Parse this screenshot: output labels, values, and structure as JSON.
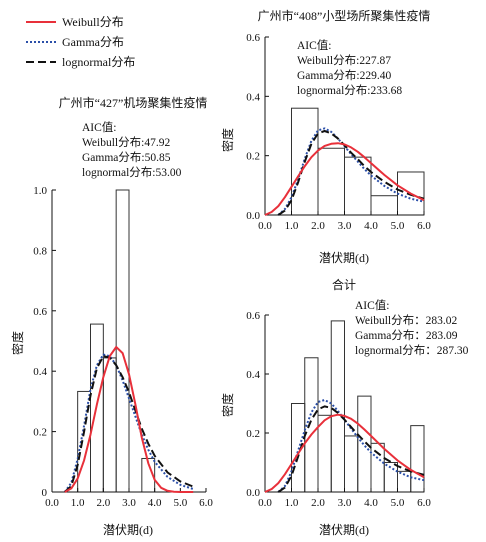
{
  "legend": [
    {
      "label": "Weibull分布",
      "color": "#e8303a",
      "dash": ""
    },
    {
      "label": "Gamma分布",
      "color": "#2b4fa8",
      "dash": "2,2"
    },
    {
      "label": "lognormal分布",
      "color": "#111111",
      "dash": "8,4"
    }
  ],
  "chart_data": [
    {
      "id": "p427",
      "type": "bar+line",
      "title": "广州市“427”机场聚集性疫情",
      "xlabel": "潜伏期(d)",
      "ylabel": "密度",
      "xlim": [
        0,
        6.0
      ],
      "ylim": [
        0,
        1.0
      ],
      "xticks": [
        "0.0",
        "1.0",
        "2.0",
        "3.0",
        "4.0",
        "5.0",
        "6.0"
      ],
      "yticks": [
        "0",
        "0.2",
        "0.4",
        "0.6",
        "0.8",
        "1.0"
      ],
      "bins": [
        {
          "x0": 1.0,
          "x1": 1.5,
          "density": 0.333
        },
        {
          "x0": 1.5,
          "x1": 2.0,
          "density": 0.556
        },
        {
          "x0": 2.0,
          "x1": 2.5,
          "density": 0.444
        },
        {
          "x0": 2.5,
          "x1": 3.0,
          "density": 1.0
        },
        {
          "x0": 3.0,
          "x1": 3.5,
          "density": 0.0
        },
        {
          "x0": 3.5,
          "x1": 4.0,
          "density": 0.111
        }
      ],
      "aic_title": "AIC值:",
      "aic": [
        "Weibull分布:47.92",
        "Gamma分布:50.85",
        "lognormal分布:53.00"
      ],
      "series": [
        {
          "name": "Weibull分布",
          "x": [
            0.5,
            0.75,
            1.0,
            1.25,
            1.5,
            1.75,
            2.0,
            2.25,
            2.5,
            2.75,
            3.0,
            3.25,
            3.5,
            3.75,
            4.0,
            4.25,
            4.5,
            4.75,
            5.0,
            5.5
          ],
          "y": [
            0.0,
            0.012,
            0.045,
            0.105,
            0.19,
            0.29,
            0.38,
            0.45,
            0.48,
            0.46,
            0.39,
            0.29,
            0.18,
            0.095,
            0.04,
            0.014,
            0.004,
            0.001,
            0.0,
            0.0
          ]
        },
        {
          "name": "Gamma分布",
          "x": [
            0.5,
            0.75,
            1.0,
            1.25,
            1.5,
            1.75,
            2.0,
            2.25,
            2.5,
            2.75,
            3.0,
            3.25,
            3.5,
            3.75,
            4.0,
            4.5,
            5.0,
            5.5
          ],
          "y": [
            0.0,
            0.03,
            0.11,
            0.22,
            0.34,
            0.42,
            0.455,
            0.45,
            0.42,
            0.37,
            0.31,
            0.25,
            0.19,
            0.14,
            0.1,
            0.05,
            0.024,
            0.01
          ]
        },
        {
          "name": "lognormal分布",
          "x": [
            0.5,
            0.75,
            1.0,
            1.25,
            1.5,
            1.75,
            2.0,
            2.25,
            2.5,
            2.75,
            3.0,
            3.25,
            3.5,
            3.75,
            4.0,
            4.5,
            5.0,
            5.5
          ],
          "y": [
            0.0,
            0.02,
            0.09,
            0.2,
            0.32,
            0.41,
            0.45,
            0.445,
            0.42,
            0.38,
            0.33,
            0.27,
            0.21,
            0.16,
            0.12,
            0.065,
            0.035,
            0.018
          ]
        }
      ]
    },
    {
      "id": "p408",
      "type": "bar+line",
      "title": "广州市“408”小型场所聚集性疫情",
      "xlabel": "潜伏期(d)",
      "ylabel": "密度",
      "xlim": [
        0,
        6.0
      ],
      "ylim": [
        0,
        0.6
      ],
      "xticks": [
        "0.0",
        "1.0",
        "2.0",
        "3.0",
        "4.0",
        "5.0",
        "6.0"
      ],
      "yticks": [
        "0.0",
        "0.2",
        "0.4",
        "0.6"
      ],
      "bins": [
        {
          "x0": 1.0,
          "x1": 2.0,
          "density": 0.36
        },
        {
          "x0": 2.0,
          "x1": 3.0,
          "density": 0.225
        },
        {
          "x0": 3.0,
          "x1": 4.0,
          "density": 0.195
        },
        {
          "x0": 4.0,
          "x1": 5.0,
          "density": 0.065
        },
        {
          "x0": 5.0,
          "x1": 6.0,
          "density": 0.145
        }
      ],
      "aic_title": "AIC值:",
      "aic": [
        "Weibull分布:227.87",
        "Gamma分布:229.40",
        "lognormal分布:233.68"
      ],
      "series": [
        {
          "name": "Weibull分布",
          "x": [
            0.0,
            0.25,
            0.5,
            0.75,
            1.0,
            1.25,
            1.5,
            1.75,
            2.0,
            2.25,
            2.5,
            2.75,
            3.0,
            3.25,
            3.5,
            3.75,
            4.0,
            4.5,
            5.0,
            5.5,
            6.0
          ],
          "y": [
            0.0,
            0.01,
            0.03,
            0.06,
            0.095,
            0.13,
            0.165,
            0.195,
            0.217,
            0.233,
            0.24,
            0.242,
            0.238,
            0.228,
            0.213,
            0.195,
            0.175,
            0.135,
            0.1,
            0.072,
            0.05
          ]
        },
        {
          "name": "Gamma分布",
          "x": [
            0.5,
            0.75,
            1.0,
            1.25,
            1.5,
            1.75,
            2.0,
            2.25,
            2.5,
            2.75,
            3.0,
            3.25,
            3.5,
            3.75,
            4.0,
            4.5,
            5.0,
            5.5,
            6.0
          ],
          "y": [
            0.0,
            0.02,
            0.06,
            0.12,
            0.19,
            0.25,
            0.285,
            0.292,
            0.28,
            0.258,
            0.232,
            0.205,
            0.18,
            0.155,
            0.133,
            0.098,
            0.072,
            0.055,
            0.045
          ]
        },
        {
          "name": "lognormal分布",
          "x": [
            0.5,
            0.75,
            1.0,
            1.25,
            1.5,
            1.75,
            2.0,
            2.25,
            2.5,
            2.75,
            3.0,
            3.25,
            3.5,
            3.75,
            4.0,
            4.5,
            5.0,
            5.5,
            6.0
          ],
          "y": [
            0.0,
            0.015,
            0.05,
            0.11,
            0.18,
            0.24,
            0.275,
            0.283,
            0.275,
            0.258,
            0.235,
            0.21,
            0.188,
            0.165,
            0.145,
            0.112,
            0.086,
            0.068,
            0.055
          ]
        }
      ]
    },
    {
      "id": "total",
      "type": "bar+line",
      "title": "合计",
      "xlabel": "潜伏期(d)",
      "ylabel": "密度",
      "xlim": [
        0,
        6.0
      ],
      "ylim": [
        0,
        0.6
      ],
      "xticks": [
        "0.0",
        "1.0",
        "2.0",
        "3.0",
        "4.0",
        "5.0",
        "6.0"
      ],
      "yticks": [
        "0.0",
        "0.2",
        "0.4",
        "0.6"
      ],
      "bins": [
        {
          "x0": 1.0,
          "x1": 1.5,
          "density": 0.3
        },
        {
          "x0": 1.5,
          "x1": 2.0,
          "density": 0.455
        },
        {
          "x0": 2.0,
          "x1": 2.5,
          "density": 0.26
        },
        {
          "x0": 2.5,
          "x1": 3.0,
          "density": 0.58
        },
        {
          "x0": 3.0,
          "x1": 3.5,
          "density": 0.19
        },
        {
          "x0": 3.5,
          "x1": 4.0,
          "density": 0.325
        },
        {
          "x0": 4.0,
          "x1": 4.5,
          "density": 0.165
        },
        {
          "x0": 4.5,
          "x1": 5.0,
          "density": 0.1
        },
        {
          "x0": 5.0,
          "x1": 5.5,
          "density": 0.07
        },
        {
          "x0": 5.5,
          "x1": 6.0,
          "density": 0.225
        }
      ],
      "aic_title": "AIC值:",
      "aic": [
        "Weibull分布：283.02",
        "Gamma分布：283.09",
        "lognormal分布：287.30"
      ],
      "series": [
        {
          "name": "Weibull分布",
          "x": [
            0.0,
            0.25,
            0.5,
            0.75,
            1.0,
            1.25,
            1.5,
            1.75,
            2.0,
            2.25,
            2.5,
            2.75,
            3.0,
            3.25,
            3.5,
            3.75,
            4.0,
            4.5,
            5.0,
            5.5,
            6.0
          ],
          "y": [
            0.0,
            0.01,
            0.03,
            0.06,
            0.095,
            0.13,
            0.165,
            0.195,
            0.22,
            0.243,
            0.257,
            0.262,
            0.258,
            0.248,
            0.232,
            0.212,
            0.19,
            0.146,
            0.107,
            0.075,
            0.05
          ]
        },
        {
          "name": "Gamma分布",
          "x": [
            0.5,
            0.75,
            1.0,
            1.25,
            1.5,
            1.75,
            2.0,
            2.25,
            2.5,
            2.75,
            3.0,
            3.25,
            3.5,
            3.75,
            4.0,
            4.5,
            5.0,
            5.5,
            6.0
          ],
          "y": [
            0.0,
            0.02,
            0.07,
            0.14,
            0.21,
            0.27,
            0.305,
            0.312,
            0.3,
            0.275,
            0.245,
            0.215,
            0.185,
            0.158,
            0.134,
            0.096,
            0.069,
            0.05,
            0.04
          ]
        },
        {
          "name": "lognormal分布",
          "x": [
            0.5,
            0.75,
            1.0,
            1.25,
            1.5,
            1.75,
            2.0,
            2.25,
            2.5,
            2.75,
            3.0,
            3.25,
            3.5,
            3.75,
            4.0,
            4.5,
            5.0,
            5.5,
            6.0
          ],
          "y": [
            0.0,
            0.015,
            0.055,
            0.12,
            0.19,
            0.245,
            0.28,
            0.29,
            0.285,
            0.268,
            0.245,
            0.22,
            0.195,
            0.172,
            0.15,
            0.115,
            0.088,
            0.07,
            0.058
          ]
        }
      ]
    }
  ]
}
